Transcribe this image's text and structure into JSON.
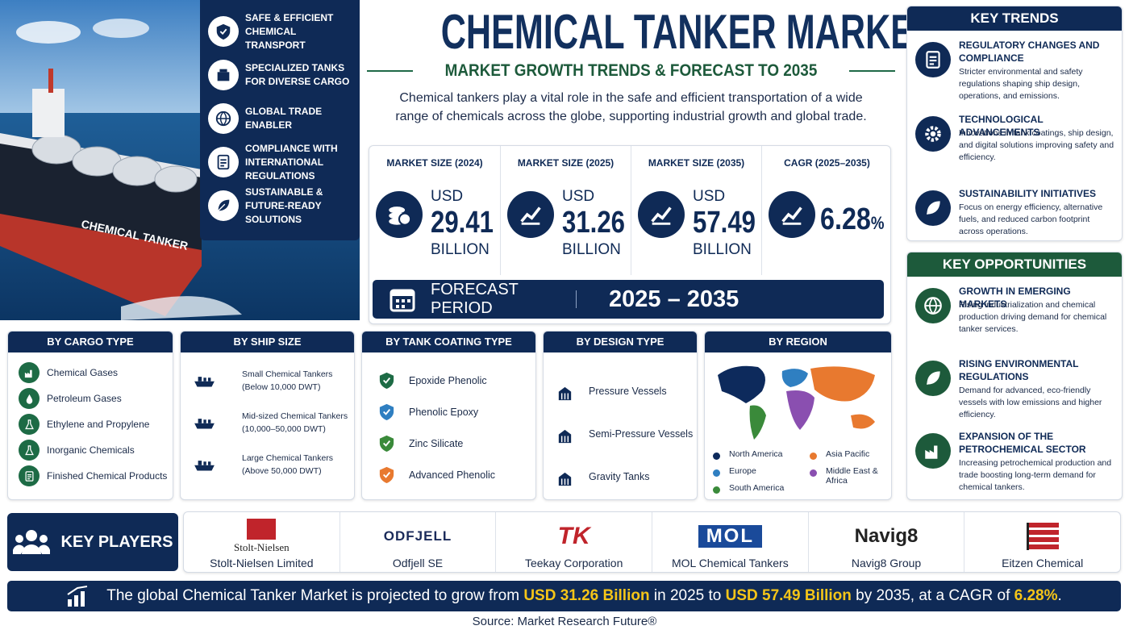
{
  "header": {
    "title": "CHEMICAL TANKER MARKET",
    "subtitle": "MARKET GROWTH TRENDS & FORECAST TO 2035",
    "description": "Chemical tankers play a vital role in the safe and efficient transportation of a wide range of chemicals across the globe, supporting industrial growth and global trade."
  },
  "image": {
    "hull_text": "CHEMICAL TANKER"
  },
  "features": [
    "SAFE & EFFICIENT CHEMICAL TRANSPORT",
    "SPECIALIZED TANKS FOR DIVERSE CARGO",
    "GLOBAL TRADE ENABLER",
    "COMPLIANCE WITH INTERNATIONAL REGULATIONS",
    "SUSTAINABLE & FUTURE-READY SOLUTIONS"
  ],
  "stats": [
    {
      "label": "MARKET SIZE (2024)",
      "prefix": "USD",
      "value": "29.41",
      "unit": "BILLION"
    },
    {
      "label": "MARKET SIZE (2025)",
      "prefix": "USD",
      "value": "31.26",
      "unit": "BILLION"
    },
    {
      "label": "MARKET SIZE (2035)",
      "prefix": "USD",
      "value": "57.49",
      "unit": "BILLION"
    },
    {
      "label": "CAGR (2025–2035)",
      "value": "6.28",
      "unit": "%"
    }
  ],
  "forecast": {
    "label": "FORECAST PERIOD",
    "value": "2025 – 2035"
  },
  "key_trends": {
    "title": "KEY TRENDS",
    "items": [
      {
        "title": "REGULATORY CHANGES AND COMPLIANCE",
        "text": "Stricter environmental and safety regulations shaping ship design, operations, and emissions."
      },
      {
        "title": "TECHNOLOGICAL ADVANCEMENTS",
        "text": "Innovations in tank coatings, ship design, and digital solutions improving safety and efficiency."
      },
      {
        "title": "SUSTAINABILITY INITIATIVES",
        "text": "Focus on energy efficiency, alternative fuels, and reduced carbon footprint across operations."
      }
    ]
  },
  "key_opportunities": {
    "title": "KEY OPPORTUNITIES",
    "items": [
      {
        "title": "GROWTH IN EMERGING MARKETS",
        "text": "Rising industrialization and chemical production driving demand for chemical tanker services."
      },
      {
        "title": "RISING ENVIRONMENTAL REGULATIONS",
        "text": "Demand for advanced, eco-friendly vessels with low emissions and higher efficiency."
      },
      {
        "title": "EXPANSION OF THE PETROCHEMICAL SECTOR",
        "text": "Increasing petrochemical production and trade boosting long-term demand for chemical tankers."
      }
    ]
  },
  "segments": {
    "cargo": {
      "title": "BY CARGO TYPE",
      "items": [
        "Chemical Gases",
        "Petroleum Gases",
        "Ethylene and Propylene",
        "Inorganic Chemicals",
        "Finished Chemical Products"
      ]
    },
    "ship_size": {
      "title": "BY SHIP SIZE",
      "items": [
        {
          "name": "Small Chemical Tankers",
          "range": "(Below 10,000 DWT)"
        },
        {
          "name": "Mid-sized Chemical Tankers",
          "range": "(10,000–50,000 DWT)"
        },
        {
          "name": "Large Chemical Tankers",
          "range": "(Above 50,000 DWT)"
        }
      ]
    },
    "coating": {
      "title": "BY TANK COATING TYPE",
      "items": [
        "Epoxide Phenolic",
        "Phenolic Epoxy",
        "Zinc Silicate",
        "Advanced Phenolic"
      ]
    },
    "design": {
      "title": "BY DESIGN TYPE",
      "items": [
        "Pressure Vessels",
        "Semi-Pressure Vessels",
        "Gravity Tanks"
      ]
    },
    "region": {
      "title": "BY REGION",
      "items": [
        {
          "name": "North America",
          "color": "#0d2a5c"
        },
        {
          "name": "Asia Pacific",
          "color": "#e8792f"
        },
        {
          "name": "Europe",
          "color": "#2f7fc1"
        },
        {
          "name": "Middle East & Africa",
          "color": "#8a4fb0"
        },
        {
          "name": "South America",
          "color": "#3a8a3a"
        }
      ]
    }
  },
  "key_players": {
    "title": "KEY PLAYERS",
    "players": [
      {
        "logo": "Stolt-Nielsen",
        "name": "Stolt-Nielsen Limited"
      },
      {
        "logo": "ODFJELL",
        "name": "Odfjell SE"
      },
      {
        "logo": "TK",
        "name": "Teekay Corporation"
      },
      {
        "logo": "MOL",
        "name": "MOL Chemical Tankers"
      },
      {
        "logo": "Navig8",
        "name": "Navig8 Group"
      },
      {
        "name": "Eitzen Chemical"
      }
    ]
  },
  "footer": {
    "summary": [
      "The global Chemical Tanker Market is projected to grow from ",
      "USD 31.26 Billion",
      " in 2025 to ",
      "USD 57.49 Billion",
      " by 2035, at a CAGR of ",
      "6.28%",
      "."
    ],
    "source": "Source: Market Research Future®"
  }
}
